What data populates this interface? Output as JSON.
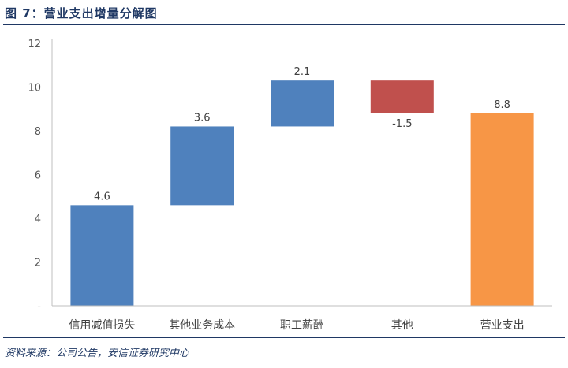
{
  "figure": {
    "title": "图 7：营业支出增量分解图",
    "source": "资料来源：公司公告，安信证券研究中心"
  },
  "chart_data": {
    "type": "bar",
    "subtype": "waterfall",
    "title": "",
    "xlabel": "",
    "ylabel": "",
    "categories": [
      "信用减值损失",
      "其他业务成本",
      "职工薪酬",
      "其他",
      "营业支出"
    ],
    "values": [
      4.6,
      3.6,
      2.1,
      -1.5,
      8.8
    ],
    "data_labels": [
      "4.6",
      "3.6",
      "2.1",
      "-1.5",
      "8.8"
    ],
    "bar_kind": [
      "increase",
      "increase",
      "increase",
      "decrease",
      "total"
    ],
    "ylim": [
      0,
      12
    ],
    "yticks": [
      0,
      2,
      4,
      6,
      8,
      10,
      12
    ],
    "ytick_labels": [
      "-",
      "2",
      "4",
      "6",
      "8",
      "10",
      "12"
    ],
    "grid": false,
    "legend": "none",
    "colors": {
      "increase": "#4f81bd",
      "decrease": "#c0504d",
      "total": "#f79646",
      "axis": "#bfbfbf"
    }
  }
}
